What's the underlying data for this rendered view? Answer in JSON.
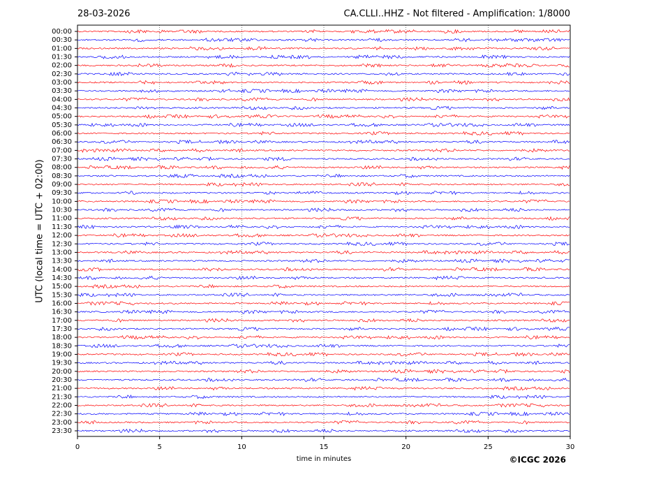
{
  "chart_data": {
    "type": "helicorder",
    "date": "28-03-2026",
    "title": "CA.CLLI..HHZ - Not filtered - Amplification: 1/8000",
    "ylabel": "UTC (local time = UTC + 02:00)",
    "xlabel": "time in minutes",
    "credit": "©ICGC 2026",
    "categories": [
      "00:00",
      "00:30",
      "01:00",
      "01:30",
      "02:00",
      "02:30",
      "03:00",
      "03:30",
      "04:00",
      "04:30",
      "05:00",
      "05:30",
      "06:00",
      "06:30",
      "07:00",
      "07:30",
      "08:00",
      "08:30",
      "09:00",
      "09:30",
      "10:00",
      "10:30",
      "11:00",
      "11:30",
      "12:00",
      "12:30",
      "13:00",
      "13:30",
      "14:00",
      "14:30",
      "15:00",
      "15:30",
      "16:00",
      "16:30",
      "17:00",
      "17:30",
      "18:00",
      "18:30",
      "19:00",
      "19:30",
      "20:00",
      "20:30",
      "21:00",
      "21:30",
      "22:00",
      "22:30",
      "23:00",
      "23:30"
    ],
    "colors": [
      "#ff0000",
      "#0000ff"
    ],
    "xlim": [
      0,
      30
    ],
    "xticks": [
      0,
      5,
      10,
      15,
      20,
      25,
      30
    ],
    "grid": true
  }
}
